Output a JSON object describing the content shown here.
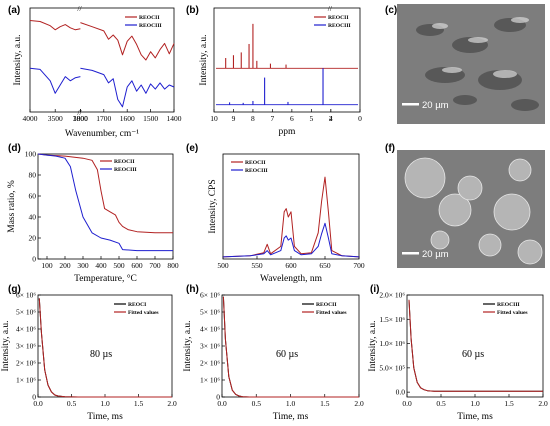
{
  "colors": {
    "red": "#b22222",
    "blue": "#1f1fcf",
    "photo": "#7d7d7d"
  },
  "panels": {
    "a": {
      "letter": "(a)"
    },
    "b": {
      "letter": "(b)"
    },
    "c": {
      "letter": "(c)",
      "scale_bar": "20 µm"
    },
    "d": {
      "letter": "(d)"
    },
    "e": {
      "letter": "(e)"
    },
    "f": {
      "letter": "(f)",
      "scale_bar": "20 µm"
    },
    "g": {
      "letter": "(g)",
      "annotation": "80  µs"
    },
    "h": {
      "letter": "(h)",
      "annotation": "60 µs"
    },
    "i": {
      "letter": "(i)",
      "annotation": "60 µs"
    }
  },
  "chart_data": [
    {
      "id": "a",
      "type": "line",
      "xlabel": "Wavenumber, cm⁻¹",
      "ylabel": "Intensity, a.u.",
      "x_ticks": [
        "4000",
        "3500",
        "3000",
        "1800",
        "1700",
        "1600",
        "1500",
        "1400"
      ],
      "legend": [
        "REOCII",
        "REOCIII"
      ],
      "series": [
        {
          "name": "REOCII",
          "color": "red",
          "x": [
            4000,
            3800,
            3600,
            3500,
            3400,
            3300,
            3200,
            3100,
            3000,
            1800,
            1750,
            1700,
            1680,
            1660,
            1640,
            1620,
            1600,
            1580,
            1560,
            1540,
            1520,
            1500,
            1480,
            1460,
            1440,
            1420,
            1400
          ],
          "y": [
            0.88,
            0.87,
            0.83,
            0.79,
            0.82,
            0.84,
            0.81,
            0.79,
            0.8,
            0.86,
            0.82,
            0.78,
            0.7,
            0.74,
            0.69,
            0.55,
            0.68,
            0.73,
            0.65,
            0.55,
            0.5,
            0.58,
            0.52,
            0.6,
            0.66,
            0.56,
            0.66
          ]
        },
        {
          "name": "REOCIII",
          "color": "blue",
          "x": [
            4000,
            3800,
            3600,
            3500,
            3400,
            3300,
            3200,
            3100,
            3000,
            1800,
            1750,
            1700,
            1680,
            1660,
            1640,
            1620,
            1600,
            1580,
            1560,
            1540,
            1520,
            1500,
            1480,
            1460,
            1440,
            1420,
            1400
          ],
          "y": [
            0.42,
            0.41,
            0.3,
            0.18,
            0.26,
            0.34,
            0.3,
            0.33,
            0.34,
            0.42,
            0.4,
            0.36,
            0.28,
            0.32,
            0.12,
            0.05,
            0.24,
            0.3,
            0.2,
            0.26,
            0.18,
            0.27,
            0.22,
            0.28,
            0.22,
            0.26,
            0.24
          ]
        }
      ]
    },
    {
      "id": "b",
      "type": "line",
      "xlabel": "ppm",
      "ylabel": "Intensity, a.u.",
      "x_ticks": [
        "10",
        "9",
        "8",
        "7",
        "6",
        "5",
        "4",
        "2",
        "0"
      ],
      "legend": [
        "REOCII",
        "REOCIII"
      ],
      "series": [
        {
          "name": "REOCII",
          "color": "red",
          "peaks": [
            [
              9.4,
              0.22
            ],
            [
              9.0,
              0.28
            ],
            [
              8.6,
              0.34
            ],
            [
              8.2,
              0.52
            ],
            [
              8.0,
              0.95
            ],
            [
              7.8,
              0.16
            ],
            [
              7.1,
              0.1
            ],
            [
              6.3,
              0.08
            ]
          ]
        },
        {
          "name": "REOCIII",
          "color": "blue",
          "peaks": [
            [
              9.2,
              0.05
            ],
            [
              8.5,
              0.04
            ],
            [
              8.0,
              0.08
            ],
            [
              7.4,
              0.58
            ],
            [
              6.2,
              0.06
            ],
            [
              4.4,
              0.78
            ]
          ]
        }
      ]
    },
    {
      "id": "d",
      "type": "line",
      "xlabel": "Temperature, °C",
      "ylabel": "Mass ratio, %",
      "xlim": [
        50,
        800
      ],
      "ylim": [
        0,
        100
      ],
      "x_ticks": [
        100,
        200,
        300,
        400,
        500,
        600,
        700,
        800
      ],
      "y_ticks": [
        0,
        20,
        40,
        60,
        80,
        100
      ],
      "legend": [
        "REOCII",
        "REOCIII"
      ],
      "series": [
        {
          "name": "REOCII",
          "color": "red",
          "x": [
            50,
            100,
            200,
            300,
            350,
            380,
            400,
            420,
            450,
            480,
            500,
            520,
            550,
            600,
            700,
            800
          ],
          "y": [
            100,
            99,
            98,
            96,
            94,
            85,
            65,
            48,
            45,
            42,
            35,
            31,
            28,
            26,
            25,
            25
          ]
        },
        {
          "name": "REOCIII",
          "color": "blue",
          "x": [
            50,
            100,
            150,
            200,
            230,
            260,
            300,
            350,
            400,
            450,
            500,
            520,
            600,
            700,
            800
          ],
          "y": [
            100,
            99,
            98,
            96,
            88,
            65,
            40,
            25,
            20,
            18,
            15,
            9,
            8,
            8,
            8
          ]
        }
      ]
    },
    {
      "id": "e",
      "type": "line",
      "xlabel": "Wavelength, nm",
      "ylabel": "Intensity, CPS",
      "xlim": [
        500,
        700
      ],
      "x_ticks": [
        500,
        550,
        600,
        650,
        700
      ],
      "legend": [
        "REOCII",
        "REOCIII"
      ],
      "series": [
        {
          "name": "REOCII",
          "color": "red",
          "x": [
            500,
            540,
            560,
            565,
            570,
            585,
            590,
            593,
            596,
            600,
            605,
            615,
            630,
            640,
            645,
            650,
            655,
            660,
            675,
            700
          ],
          "y": [
            0.02,
            0.03,
            0.06,
            0.14,
            0.05,
            0.12,
            0.45,
            0.48,
            0.4,
            0.45,
            0.12,
            0.05,
            0.06,
            0.25,
            0.55,
            0.78,
            0.45,
            0.08,
            0.03,
            0.02
          ]
        },
        {
          "name": "REOCIII",
          "color": "blue",
          "x": [
            500,
            540,
            560,
            565,
            570,
            585,
            590,
            593,
            596,
            600,
            605,
            615,
            630,
            640,
            645,
            650,
            655,
            660,
            675,
            700
          ],
          "y": [
            0.02,
            0.03,
            0.05,
            0.08,
            0.04,
            0.08,
            0.2,
            0.22,
            0.18,
            0.2,
            0.08,
            0.04,
            0.05,
            0.12,
            0.24,
            0.34,
            0.2,
            0.05,
            0.03,
            0.02
          ]
        }
      ]
    },
    {
      "id": "g",
      "type": "line",
      "xlabel": "Time, ms",
      "ylabel": "Intensity, a.u.",
      "xlim": [
        0,
        2.0
      ],
      "ylim": [
        0,
        6000000
      ],
      "x_ticks": [
        "0.0",
        "0.5",
        "1.0",
        "1.5",
        "2.0"
      ],
      "y_ticks": [
        "0",
        "1× 10⁶",
        "2× 10⁶",
        "3× 10⁶",
        "4× 10⁶",
        "5× 10⁶",
        "6× 10⁶"
      ],
      "legend": [
        "REOCI",
        "Fitted values"
      ],
      "lifetime_us": 80,
      "series": [
        {
          "name": "REOCI",
          "color": "#000000",
          "x": [
            0.02,
            0.05,
            0.1,
            0.15,
            0.2,
            0.25,
            0.3,
            0.4,
            0.6,
            1.0,
            1.5,
            2.0
          ],
          "y": [
            5800000,
            3800000,
            1600000,
            700000,
            300000,
            120000,
            60000,
            20000,
            0,
            0,
            0,
            0
          ]
        },
        {
          "name": "Fitted values",
          "color": "red",
          "x": [
            0.02,
            0.05,
            0.1,
            0.15,
            0.2,
            0.25,
            0.3,
            0.4,
            0.6,
            1.0,
            1.5,
            2.0
          ],
          "y": [
            5800000,
            3800000,
            1600000,
            700000,
            300000,
            120000,
            60000,
            20000,
            0,
            0,
            0,
            0
          ]
        }
      ]
    },
    {
      "id": "h",
      "type": "line",
      "xlabel": "Time, ms",
      "ylabel": "Intensity, a.u.",
      "xlim": [
        0,
        2.0
      ],
      "ylim": [
        0,
        6000000
      ],
      "x_ticks": [
        "0.0",
        "0.5",
        "1.0",
        "1.5",
        "2.0"
      ],
      "y_ticks": [
        "0",
        "1× 10⁶",
        "2× 10⁶",
        "3× 10⁶",
        "4× 10⁶",
        "5× 10⁶",
        "6× 10⁶"
      ],
      "legend": [
        "REOCII",
        "Fitted values"
      ],
      "lifetime_us": 60,
      "series": [
        {
          "name": "REOCII",
          "color": "#000000",
          "x": [
            0.02,
            0.05,
            0.1,
            0.15,
            0.2,
            0.25,
            0.3,
            0.4,
            0.6,
            1.0,
            1.5,
            2.0
          ],
          "y": [
            5900000,
            3400000,
            1200000,
            400000,
            150000,
            60000,
            20000,
            0,
            0,
            0,
            0,
            0
          ]
        },
        {
          "name": "Fitted values",
          "color": "red",
          "x": [
            0.02,
            0.05,
            0.1,
            0.15,
            0.2,
            0.25,
            0.3,
            0.4,
            0.6,
            1.0,
            1.5,
            2.0
          ],
          "y": [
            5900000,
            3400000,
            1200000,
            400000,
            150000,
            60000,
            20000,
            0,
            0,
            0,
            0,
            0
          ]
        }
      ]
    },
    {
      "id": "i",
      "type": "line",
      "xlabel": "Time, ms",
      "ylabel": "Intensity, a.u.",
      "xlim": [
        0,
        2.0
      ],
      "ylim": [
        -100000,
        2000000
      ],
      "x_ticks": [
        "0.0",
        "0.5",
        "1.0",
        "1.5",
        "2.0"
      ],
      "y_ticks": [
        "0.0",
        "5.0× 10⁵",
        "1.0× 10⁶",
        "1.5× 10⁶",
        "2.0× 10⁶"
      ],
      "legend": [
        "REOCIII",
        "Fitted values"
      ],
      "lifetime_us": 60,
      "series": [
        {
          "name": "REOCIII",
          "color": "#000000",
          "x": [
            0.03,
            0.06,
            0.1,
            0.15,
            0.2,
            0.25,
            0.3,
            0.4,
            0.6,
            1.0,
            1.5,
            2.0
          ],
          "y": [
            1900000,
            1100000,
            500000,
            200000,
            90000,
            50000,
            30000,
            20000,
            20000,
            20000,
            20000,
            20000
          ]
        },
        {
          "name": "Fitted values",
          "color": "red",
          "x": [
            0.03,
            0.06,
            0.1,
            0.15,
            0.2,
            0.25,
            0.3,
            0.4,
            0.6,
            1.0,
            1.5,
            2.0
          ],
          "y": [
            1900000,
            1100000,
            500000,
            200000,
            90000,
            50000,
            30000,
            20000,
            20000,
            20000,
            20000,
            20000
          ]
        }
      ]
    }
  ]
}
